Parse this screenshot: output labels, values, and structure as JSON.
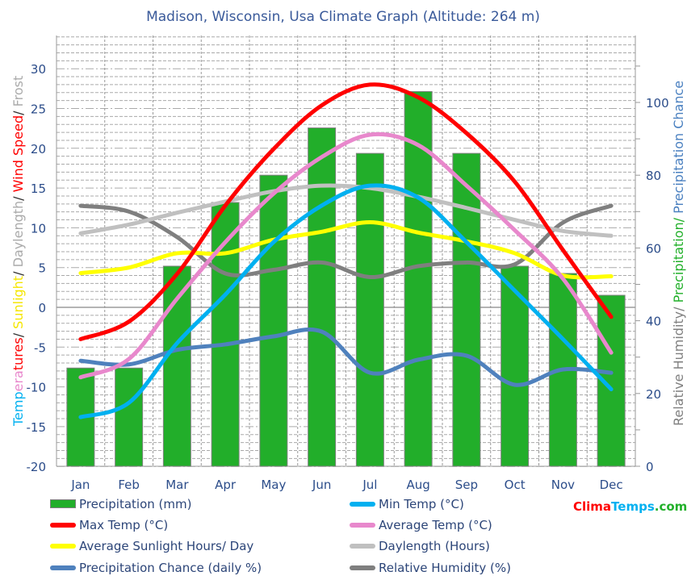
{
  "chart_data": {
    "type": "bar+line",
    "title": "Madison, Wisconsin, Usa Climate Graph (Altitude: 264 m)",
    "categories": [
      "Jan",
      "Feb",
      "Mar",
      "Apr",
      "May",
      "Jun",
      "Jul",
      "Aug",
      "Sep",
      "Oct",
      "Nov",
      "Dec"
    ],
    "left_axis": {
      "label_parts": [
        {
          "text": "Temp",
          "color": "#00b0f0"
        },
        {
          "text": "era",
          "color": "#e888cc"
        },
        {
          "text": "tures",
          "color": "#ff0000"
        },
        {
          "text": "/ ",
          "color": "#333333"
        },
        {
          "text": "Sunlight",
          "color": "#f5e600"
        },
        {
          "text": "/ ",
          "color": "#333333"
        },
        {
          "text": "Daylength",
          "color": "#aaaaaa"
        },
        {
          "text": "/ ",
          "color": "#333333"
        },
        {
          "text": "Wind Speed",
          "color": "#ff0000"
        },
        {
          "text": "/ ",
          "color": "#333333"
        },
        {
          "text": "Frost",
          "color": "#aaaaaa"
        }
      ],
      "ylim": [
        -20,
        30
      ],
      "ticks": [
        "-20",
        "-15",
        "-10",
        "-5",
        "0",
        "5",
        "10",
        "15",
        "20",
        "25",
        "30"
      ]
    },
    "right_axis": {
      "label_parts": [
        {
          "text": "Relative Humidity/ ",
          "color": "#808080"
        },
        {
          "text": "Precipitation/ ",
          "color": "#22b02a"
        },
        {
          "text": "Precipitation Chance",
          "color": "#4a80c0"
        }
      ],
      "ylim": [
        0,
        110
      ],
      "ticks": [
        "0",
        "20",
        "40",
        "60",
        "80",
        "100"
      ]
    },
    "grid": true,
    "legend_position": "bottom",
    "series": [
      {
        "name": "Precipitation (mm)",
        "kind": "bar",
        "axis": "right",
        "color": "#22ae2a",
        "values": [
          27,
          27,
          55,
          72.5,
          80,
          93,
          86,
          103,
          86,
          55,
          53,
          47
        ]
      },
      {
        "name": "Min Temp (°C)",
        "kind": "line",
        "axis": "left",
        "color": "#00b0f0",
        "values": [
          -13.8,
          -12,
          -4.5,
          1.6,
          8.2,
          12.8,
          15.3,
          13.8,
          8.2,
          2.1,
          -4,
          -10.3
        ]
      },
      {
        "name": "Max Temp (°C)",
        "kind": "line",
        "axis": "left",
        "color": "#ff0000",
        "values": [
          -4,
          -1.8,
          4.2,
          12.8,
          19.9,
          25.4,
          28,
          26.4,
          21.9,
          15.8,
          7.2,
          -1.2
        ]
      },
      {
        "name": "Average Temp (°C)",
        "kind": "line",
        "axis": "left",
        "color": "#e888cc",
        "values": [
          -8.8,
          -6.5,
          1.1,
          8.2,
          14.3,
          18.9,
          21.7,
          20.4,
          15.3,
          9.7,
          3.6,
          -5.7
        ]
      },
      {
        "name": "Average Sunlight Hours/ Day",
        "kind": "line",
        "axis": "left",
        "color": "#ffff00",
        "values": [
          4.3,
          5,
          6.8,
          6.8,
          8.5,
          9.5,
          10.7,
          9.4,
          8.3,
          6.8,
          4,
          3.9
        ]
      },
      {
        "name": "Daylength (Hours)",
        "kind": "line",
        "axis": "left",
        "color": "#c0c0c0",
        "values": [
          9.3,
          10.4,
          11.9,
          13.3,
          14.6,
          15.3,
          15,
          13.9,
          12.5,
          11,
          9.6,
          9
        ]
      },
      {
        "name": "Precipitation Chance (daily %)",
        "kind": "line",
        "axis": "right",
        "color": "#4f81bd",
        "values": [
          29,
          28,
          32,
          33.5,
          35.7,
          37,
          25.7,
          29.3,
          30.4,
          22.4,
          26.6,
          25.7
        ]
      },
      {
        "name": "Relative Humidity (%)",
        "kind": "line",
        "axis": "right",
        "color": "#7f7f7f",
        "values": [
          71.6,
          70,
          63,
          53,
          54,
          56,
          52,
          55,
          56,
          55.5,
          67,
          71.6
        ]
      }
    ]
  },
  "logo": {
    "part1": "Clima",
    "part2": "Temps",
    "part3": ".com",
    "color1": "#ff0000",
    "color2": "#00b0f0",
    "color3": "#22b02a"
  }
}
